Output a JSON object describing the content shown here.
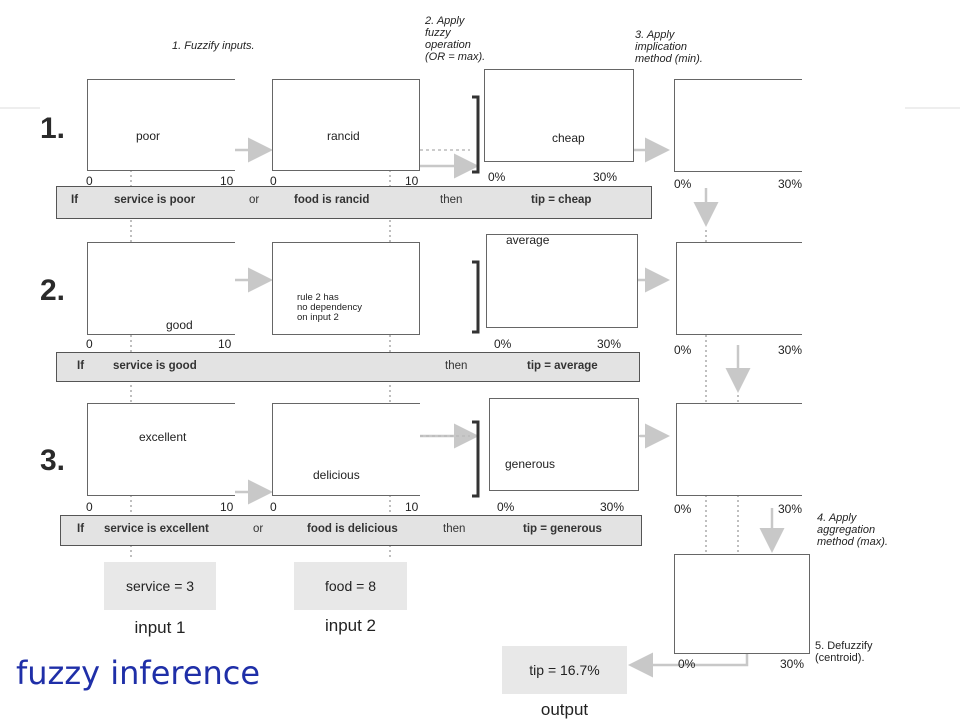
{
  "steps": {
    "fuzzify": "1. Fuzzify inputs.",
    "apply_op": [
      "2. Apply",
      "fuzzy",
      "operation",
      "(OR = max)."
    ],
    "implication": [
      "3. Apply",
      "implication",
      "method (min)."
    ],
    "aggregation": [
      "4. Apply",
      "aggregation",
      "method (max)."
    ],
    "defuzzify": [
      "5. Defuzzify",
      "(centroid)."
    ]
  },
  "rules": [
    {
      "num": "1.",
      "if": "If",
      "cond1": "service is poor",
      "op": "or",
      "cond2": "food is rancid",
      "then": "then",
      "result": "tip = cheap"
    },
    {
      "num": "2.",
      "if": "If",
      "cond1": "service is good",
      "then": "then",
      "result": "tip = average"
    },
    {
      "num": "3.",
      "if": "If",
      "cond1": "service is excellent",
      "op": "or",
      "cond2": "food is delicious",
      "then": "then",
      "result": "tip = generous"
    }
  ],
  "mf_labels": {
    "poor": "poor",
    "rancid": "rancid",
    "cheap": "cheap",
    "good": "good",
    "average": "average",
    "excellent": "excellent",
    "delicious": "delicious",
    "generous": "generous"
  },
  "no_dependency_note": [
    "rule 2 has",
    "no dependency",
    "on input 2"
  ],
  "ticks": {
    "zero": "0",
    "ten": "10",
    "zero_pct": "0%",
    "thirty_pct": "30%"
  },
  "inputs": {
    "service_value": "service = 3",
    "service_caption": "input 1",
    "food_value": "food = 8",
    "food_caption": "input 2"
  },
  "output": {
    "value": "tip = 16.7%",
    "caption": "output"
  },
  "title": "fuzzy inference",
  "colors": {
    "title": "#1f2fa8",
    "curve": "#5a5a5a",
    "fill": "#cfcfcf",
    "arrow": "#c8c8c8",
    "rule_bar": "#e3e3e3"
  }
}
